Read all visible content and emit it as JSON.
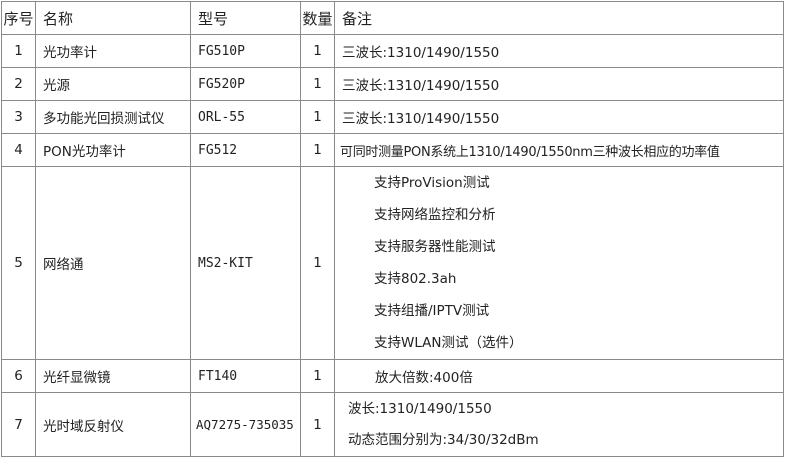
{
  "headers": {
    "index": "序号",
    "name": "名称",
    "model": "型号",
    "qty": "数量",
    "remark": "备注"
  },
  "rows": [
    {
      "index": "1",
      "name": "光功率计",
      "model": "FG510P",
      "qty": "1",
      "remarks": [
        "三波长:1310/1490/1550"
      ]
    },
    {
      "index": "2",
      "name": "光源",
      "model": "FG520P",
      "qty": "1",
      "remarks": [
        "三波长:1310/1490/1550"
      ]
    },
    {
      "index": "3",
      "name": "多功能光回损测试仪",
      "model": "ORL-55",
      "qty": "1",
      "remarks": [
        "三波长:1310/1490/1550"
      ]
    },
    {
      "index": "4",
      "name": "PON光功率计",
      "model": "FG512",
      "qty": "1",
      "remarks": [
        "可同时测量PON系统上1310/1490/1550nm三种波长相应的功率值"
      ]
    },
    {
      "index": "5",
      "name": "网络通",
      "model": "MS2-KIT",
      "qty": "1",
      "remarks": [
        "支持ProVision测试",
        "支持网络监控和分析",
        "支持服务器性能测试",
        "支持802.3ah",
        "支持组播/IPTV测试",
        "支持WLAN测试（选件）"
      ]
    },
    {
      "index": "6",
      "name": "光纤显微镜",
      "model": "FT140",
      "qty": "1",
      "remarks": [
        "放大倍数:400倍"
      ]
    },
    {
      "index": "7",
      "name": "光时域反射仪",
      "model": "AQ7275-735035",
      "qty": "1",
      "remarks": [
        "波长:1310/1490/1550",
        "动态范围分别为:34/30/32dBm"
      ]
    }
  ]
}
